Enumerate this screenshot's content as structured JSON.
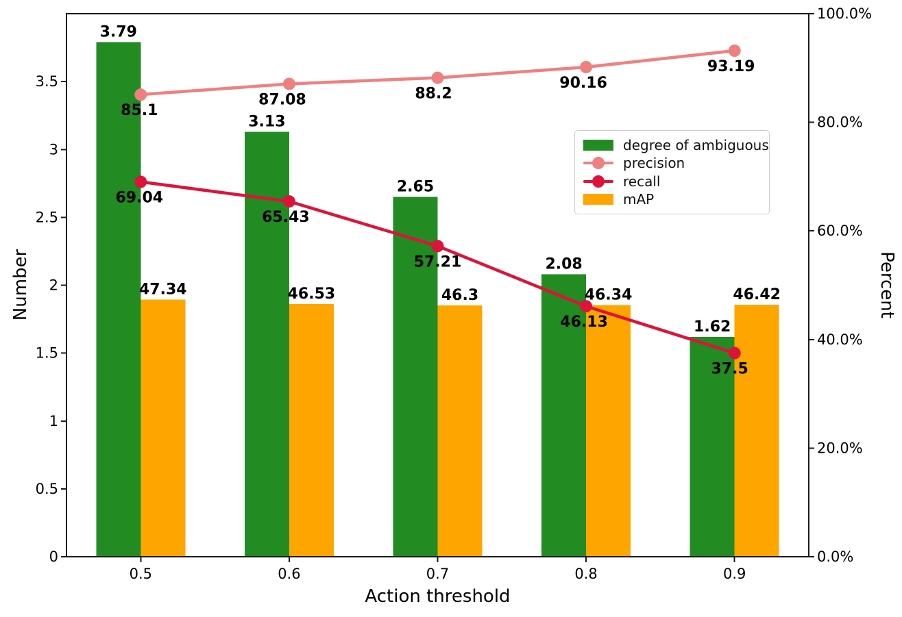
{
  "chart_data": {
    "type": "combo-bar-line",
    "title": "",
    "xlabel": "Action threshold",
    "ylabel_left": "Number",
    "ylabel_right": "Percent",
    "categories": [
      "0.5",
      "0.6",
      "0.7",
      "0.8",
      "0.9"
    ],
    "left_axis": {
      "range": [
        0,
        4
      ],
      "tick_values": [
        0,
        0.5,
        1,
        1.5,
        2,
        2.5,
        3,
        3.5
      ],
      "tick_labels": [
        "0",
        "0.5",
        "1",
        "1.5",
        "2",
        "2.5",
        "3",
        "3.5"
      ]
    },
    "right_axis": {
      "range": [
        0,
        100
      ],
      "tick_values": [
        0,
        20,
        40,
        60,
        80,
        100
      ],
      "tick_labels": [
        "0.0%",
        "20.0%",
        "40.0%",
        "60.0%",
        "80.0%",
        "100.0%"
      ]
    },
    "grid": false,
    "legend_position": "center-right",
    "series": [
      {
        "name": "degree of ambiguous",
        "type": "bar",
        "axis": "left",
        "color": "#228B22",
        "values": [
          3.79,
          3.13,
          2.65,
          2.08,
          1.62
        ],
        "labels": [
          "3.79",
          "3.13",
          "2.65",
          "2.08",
          "1.62"
        ]
      },
      {
        "name": "precision",
        "type": "line",
        "axis": "right",
        "color": "#F08080",
        "values": [
          85.1,
          87.08,
          88.2,
          90.16,
          93.19
        ],
        "labels": [
          "85.1",
          "87.08",
          "88.2",
          "90.16",
          "93.19"
        ],
        "label_dx": [
          -2,
          -10,
          -6,
          -4,
          -5
        ]
      },
      {
        "name": "recall",
        "type": "line",
        "axis": "right",
        "color": "#DC143C",
        "values": [
          69.04,
          65.43,
          57.21,
          46.13,
          37.5
        ],
        "labels": [
          "69.04",
          "65.43",
          "57.21",
          "46.13",
          "37.5"
        ],
        "label_dx": [
          -2,
          -5,
          0,
          -3,
          -7
        ]
      },
      {
        "name": "mAP",
        "type": "bar",
        "axis": "right",
        "color": "#FFA500",
        "values": [
          47.34,
          46.53,
          46.3,
          46.34,
          46.42
        ],
        "labels": [
          "47.34",
          "46.53",
          "46.3",
          "46.34",
          "46.42"
        ]
      }
    ]
  }
}
